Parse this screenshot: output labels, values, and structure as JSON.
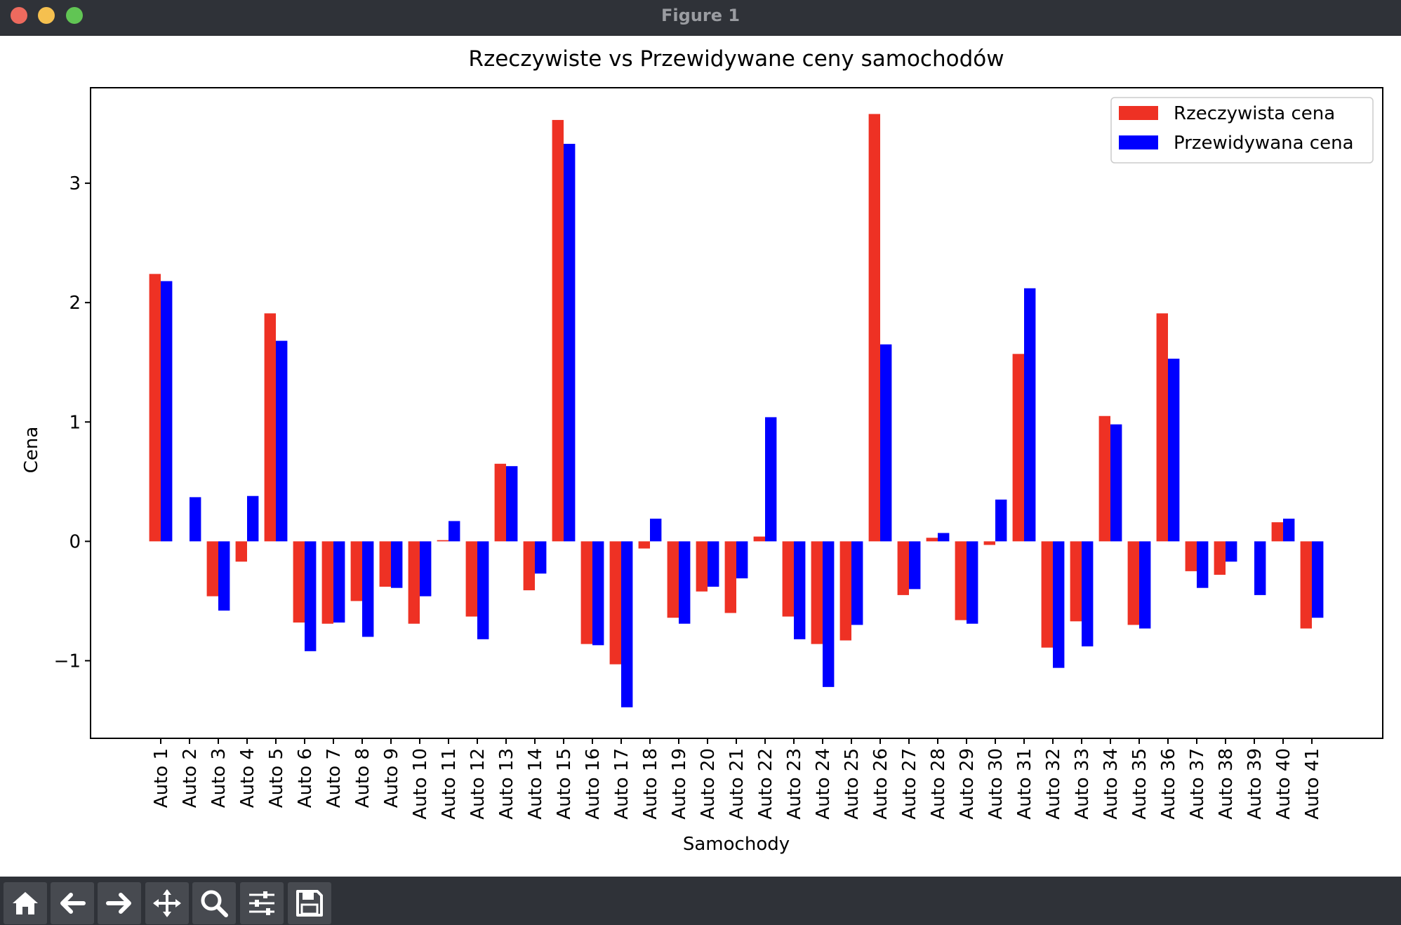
{
  "window": {
    "title": "Figure 1"
  },
  "toolbar": {
    "buttons": [
      {
        "name": "home-icon"
      },
      {
        "name": "back-arrow-icon"
      },
      {
        "name": "forward-arrow-icon"
      },
      {
        "name": "pan-move-icon"
      },
      {
        "name": "zoom-magnifier-icon"
      },
      {
        "name": "configure-subplots-icon"
      },
      {
        "name": "save-floppy-icon"
      }
    ]
  },
  "chart_data": {
    "type": "bar",
    "title": "Rzeczywiste vs Przewidywane ceny samochodów",
    "xlabel": "Samochody",
    "ylabel": "Cena",
    "ylim": [
      -1.65,
      3.8
    ],
    "yticks": [
      -1,
      0,
      1,
      2,
      3
    ],
    "ytick_labels": [
      "−1",
      "0",
      "1",
      "2",
      "3"
    ],
    "grid": false,
    "legend_position": "top-right",
    "categories": [
      "Auto 1",
      "Auto 2",
      "Auto 3",
      "Auto 4",
      "Auto 5",
      "Auto 6",
      "Auto 7",
      "Auto 8",
      "Auto 9",
      "Auto 10",
      "Auto 11",
      "Auto 12",
      "Auto 13",
      "Auto 14",
      "Auto 15",
      "Auto 16",
      "Auto 17",
      "Auto 18",
      "Auto 19",
      "Auto 20",
      "Auto 21",
      "Auto 22",
      "Auto 23",
      "Auto 24",
      "Auto 25",
      "Auto 26",
      "Auto 27",
      "Auto 28",
      "Auto 29",
      "Auto 30",
      "Auto 31",
      "Auto 32",
      "Auto 33",
      "Auto 34",
      "Auto 35",
      "Auto 36",
      "Auto 37",
      "Auto 38",
      "Auto 39",
      "Auto 40",
      "Auto 41"
    ],
    "series": [
      {
        "name": "Rzeczywista cena",
        "color": "#ee3124",
        "values": [
          2.24,
          0.0,
          -0.46,
          -0.17,
          1.91,
          -0.68,
          -0.69,
          -0.5,
          -0.38,
          -0.69,
          0.01,
          -0.63,
          0.65,
          -0.41,
          3.53,
          -0.86,
          -1.03,
          -0.06,
          -0.64,
          -0.42,
          -0.6,
          0.04,
          -0.63,
          -0.86,
          -0.83,
          3.58,
          -0.45,
          0.03,
          -0.66,
          -0.03,
          1.57,
          -0.89,
          -0.67,
          1.05,
          -0.7,
          1.91,
          -0.25,
          -0.28,
          0.0,
          0.16,
          -0.73
        ]
      },
      {
        "name": "Przewidywana cena",
        "color": "#0000ff",
        "values": [
          2.18,
          0.37,
          -0.58,
          0.38,
          1.68,
          -0.92,
          -0.68,
          -0.8,
          -0.39,
          -0.46,
          0.17,
          -0.82,
          0.63,
          -0.27,
          3.33,
          -0.87,
          -1.39,
          0.19,
          -0.69,
          -0.38,
          -0.31,
          1.04,
          -0.82,
          -1.22,
          -0.7,
          1.65,
          -0.4,
          0.07,
          -0.69,
          0.35,
          2.12,
          -1.06,
          -0.88,
          0.98,
          -0.73,
          1.53,
          -0.39,
          -0.17,
          -0.45,
          0.19,
          -0.64
        ]
      }
    ]
  }
}
